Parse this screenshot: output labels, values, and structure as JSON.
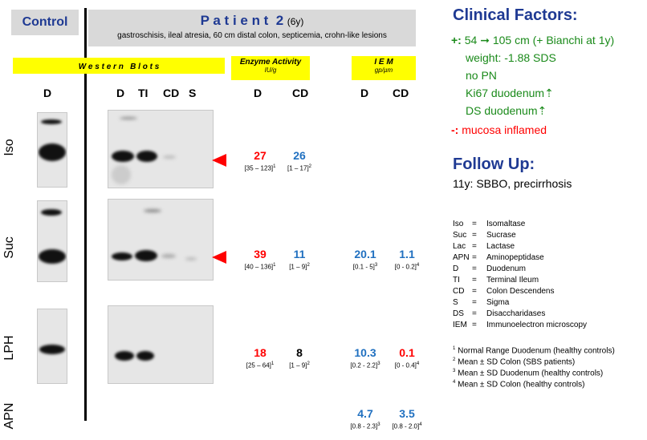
{
  "control": {
    "label": "Control"
  },
  "patient": {
    "title": "P a t i e n t  2",
    "age": "(6y)",
    "subtitle": "gastroschisis, ileal atresia, 60 cm distal colon, septicemia, crohn-like lesions"
  },
  "headers": {
    "western_blots": "W e s t e r n   B l o t s",
    "enzyme_activity": "Enzyme Activity",
    "enzyme_unit": "IU/g",
    "iem": "I E M",
    "iem_unit": "gp/µm"
  },
  "lanes": {
    "control": [
      "D"
    ],
    "patient": [
      "D",
      "TI",
      "CD",
      "S"
    ],
    "enzyme": [
      "D",
      "CD"
    ],
    "iem": [
      "D",
      "CD"
    ]
  },
  "rows": {
    "iso": {
      "label": "Iso",
      "enz_d": "27",
      "enz_d_range": "[35 – 123]",
      "enz_d_ref": "1",
      "enz_cd": "26",
      "enz_cd_range": "[1 – 17]",
      "enz_cd_ref": "2"
    },
    "suc": {
      "label": "Suc",
      "enz_d": "39",
      "enz_d_range": "[40 – 136]",
      "enz_d_ref": "1",
      "enz_cd": "11",
      "enz_cd_range": "[1 – 9]",
      "enz_cd_ref": "2",
      "iem_d": "20.1",
      "iem_d_range": "[0.1 - 5]",
      "iem_d_ref": "3",
      "iem_cd": "1.1",
      "iem_cd_range": "[0 - 0.2]",
      "iem_cd_ref": "4"
    },
    "lph": {
      "label": "LPH",
      "enz_d": "18",
      "enz_d_range": "[25 – 64]",
      "enz_d_ref": "1",
      "enz_cd": "8",
      "enz_cd_range": "[1 – 9]",
      "enz_cd_ref": "2",
      "iem_d": "10.3",
      "iem_d_range": "[0.2 - 2.2]",
      "iem_d_ref": "3",
      "iem_cd": "0.1",
      "iem_cd_range": "[0 - 0.4]",
      "iem_cd_ref": "4"
    },
    "apn": {
      "label": "APN",
      "iem_d": "4.7",
      "iem_d_range": "[0.8 - 2.3]",
      "iem_d_ref": "3",
      "iem_cd": "3.5",
      "iem_cd_range": "[0.8 - 2.0]",
      "iem_cd_ref": "4"
    }
  },
  "clinical": {
    "title": "Clinical Factors:",
    "plus_sign": "+:",
    "plus_items": [
      "54 ➞ 105 cm (+ Bianchi at 1y)",
      "weight: -1.88 SDS",
      "no PN",
      "Ki67 duodenum⇡",
      "DS duodenum⇡"
    ],
    "minus_sign": "-:",
    "minus_item": "mucosa inflamed"
  },
  "followup": {
    "title": "Follow Up:",
    "text": "11y: SBBO, precirrhosis"
  },
  "abbreviations": [
    {
      "abbr": "Iso",
      "eq": "=",
      "def": "Isomaltase"
    },
    {
      "abbr": "Suc",
      "eq": "=",
      "def": "Sucrase"
    },
    {
      "abbr": "Lac",
      "eq": "=",
      "def": "Lactase"
    },
    {
      "abbr": "APN",
      "eq": "=",
      "def": "Aminopeptidase"
    },
    {
      "abbr": "D",
      "eq": "=",
      "def": "Duodenum"
    },
    {
      "abbr": "TI",
      "eq": "=",
      "def": "Terminal Ileum"
    },
    {
      "abbr": "CD",
      "eq": "=",
      "def": "Colon Descendens"
    },
    {
      "abbr": "S",
      "eq": "=",
      "def": "Sigma"
    },
    {
      "abbr": "DS",
      "eq": "=",
      "def": "Disaccharidases"
    },
    {
      "abbr": "IEM",
      "eq": "=",
      "def": "Immunoelectron microscopy"
    }
  ],
  "footnotes": [
    {
      "num": "1",
      "text": "Normal Range Duodenum (healthy controls)"
    },
    {
      "num": "2",
      "text": "Mean ± SD Colon (SBS patients)"
    },
    {
      "num": "3",
      "text": "Mean ± SD Duodenum (healthy controls)"
    },
    {
      "num": "4",
      "text": "Mean ± SD Colon (healthy controls)"
    }
  ],
  "colors": {
    "red": "#ff0000",
    "blue": "#2070c0",
    "navy": "#1f3a93",
    "green": "#1a8a1a",
    "yellow": "#ffff00",
    "grey": "#d9d9d9"
  }
}
